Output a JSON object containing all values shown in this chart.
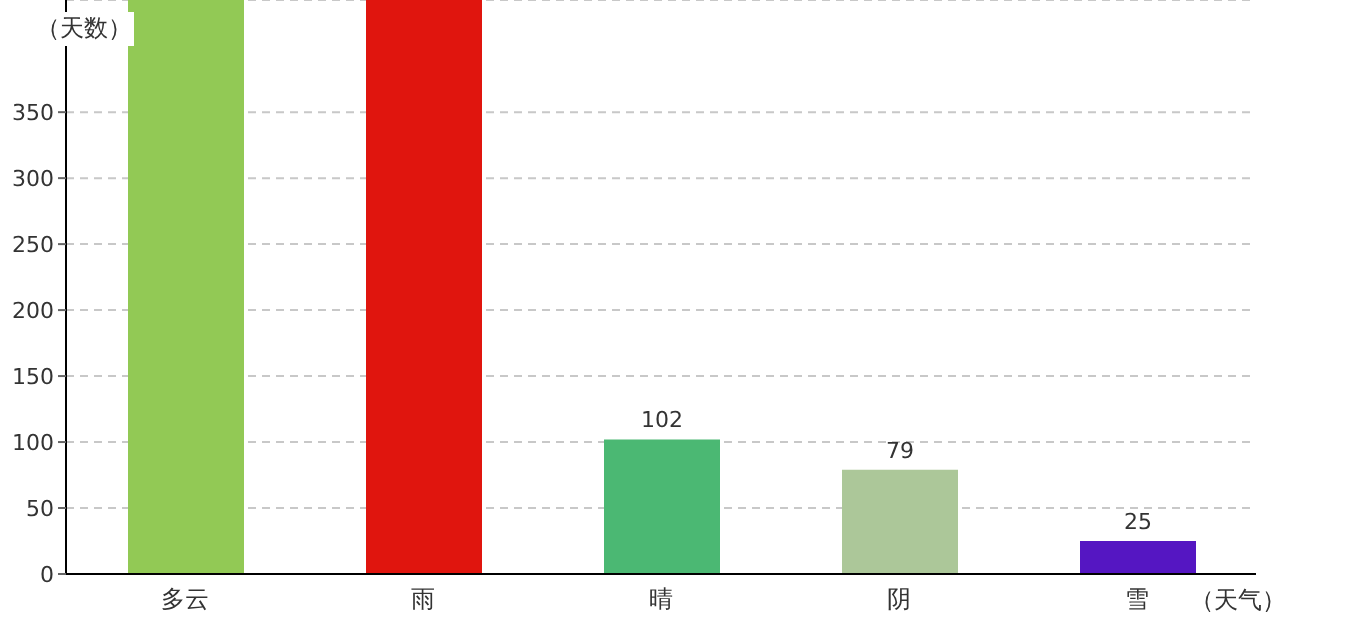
{
  "chart_data": {
    "type": "bar",
    "xlabel": "（天气）",
    "ylabel": "（天数）",
    "categories": [
      "多云",
      "雨",
      "晴",
      "阴",
      "雪"
    ],
    "values": [
      435,
      435,
      102,
      79,
      25
    ],
    "colors": [
      "#92c955",
      "#e0150e",
      "#4bb873",
      "#acc799",
      "#5516c2"
    ],
    "value_labels": [
      null,
      null,
      "102",
      "79",
      "25"
    ],
    "ylim": [
      0,
      435
    ],
    "yticks": [
      0,
      50,
      100,
      150,
      200,
      250,
      300,
      350
    ],
    "grid": "y"
  }
}
